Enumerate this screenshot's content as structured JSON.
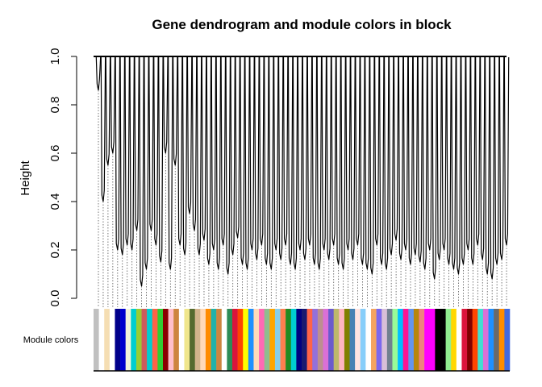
{
  "chart_data": {
    "type": "dendrogram",
    "title": "Gene dendrogram and module colors in block",
    "ylabel": "Height",
    "xlabel": "",
    "ylim": [
      0,
      1
    ],
    "y_ticks": [
      "0.0",
      "0.2",
      "0.4",
      "0.6",
      "0.8",
      "1.0"
    ],
    "color_row_label": "Module colors",
    "series": [
      {
        "values": [
          0.86,
          0.4,
          0.55,
          0.6,
          0.2,
          0.18,
          0.22,
          0.2,
          0.28,
          0.05,
          0.12,
          0.28,
          0.22,
          0.15,
          0.6,
          0.12,
          0.55,
          0.22,
          0.18,
          0.35,
          0.28,
          0.18,
          0.24,
          0.14,
          0.2,
          0.12,
          0.22,
          0.1,
          0.18,
          0.25,
          0.14,
          0.12,
          0.2,
          0.16,
          0.22,
          0.14,
          0.12,
          0.2,
          0.16,
          0.22,
          0.14,
          0.12,
          0.2,
          0.16,
          0.22,
          0.14,
          0.12,
          0.2,
          0.16,
          0.22,
          0.14,
          0.12,
          0.2,
          0.16,
          0.22,
          0.14,
          0.12,
          0.1,
          0.22,
          0.14,
          0.12,
          0.18,
          0.24,
          0.16,
          0.2,
          0.14,
          0.18,
          0.15,
          0.12,
          0.2,
          0.08,
          0.16,
          0.2,
          0.14,
          0.12,
          0.1,
          0.14,
          0.2,
          0.14,
          0.22,
          0.16,
          0.1,
          0.08,
          0.14,
          0.16,
          0.22
        ]
      }
    ],
    "module_colors": [
      "#c0c0c0",
      "#ffffff",
      "#f5deb3",
      "#ffffff",
      "#00008b",
      "#0000cd",
      "#f5f5dc",
      "#00ced1",
      "#9acd32",
      "#cd5c5c",
      "#00ced1",
      "#ff6347",
      "#32cd32",
      "#8b0000",
      "#ffc0cb",
      "#cd853f",
      "#ffffff",
      "#f0e68c",
      "#556b2f",
      "#d2b48c",
      "#ffdab9",
      "#ff8c00",
      "#20b2aa",
      "#cd853f",
      "#ffffff",
      "#2e8b57",
      "#dc143c",
      "#ff4500",
      "#ffff00",
      "#1e90ff",
      "#ffdab9",
      "#ff69b4",
      "#8fbc8f",
      "#ffa500",
      "#87ceeb",
      "#ff7f50",
      "#228b22",
      "#00ced1",
      "#000080",
      "#191970",
      "#ff6347",
      "#9370db",
      "#bc8f8f",
      "#da70d6",
      "#6a5acd",
      "#bdb76b",
      "#ffb6c1",
      "#808000",
      "#4682b4",
      "#ffe4e1",
      "#87cefa",
      "#ffffff",
      "#f4a460",
      "#7b68ee",
      "#d8bfd8",
      "#708090",
      "#98fb98",
      "#00bfff",
      "#ff1493",
      "#6495ed",
      "#b8860b",
      "#f08080",
      "#ff00ff",
      "#ff00ff",
      "#000000",
      "#000000",
      "#90ee90",
      "#ffd700",
      "#ffffff",
      "#dc143c",
      "#800000",
      "#ff4500",
      "#40e0d0",
      "#da70d6",
      "#1e90ff",
      "#696969",
      "#ff8c00",
      "#4169e1"
    ]
  }
}
